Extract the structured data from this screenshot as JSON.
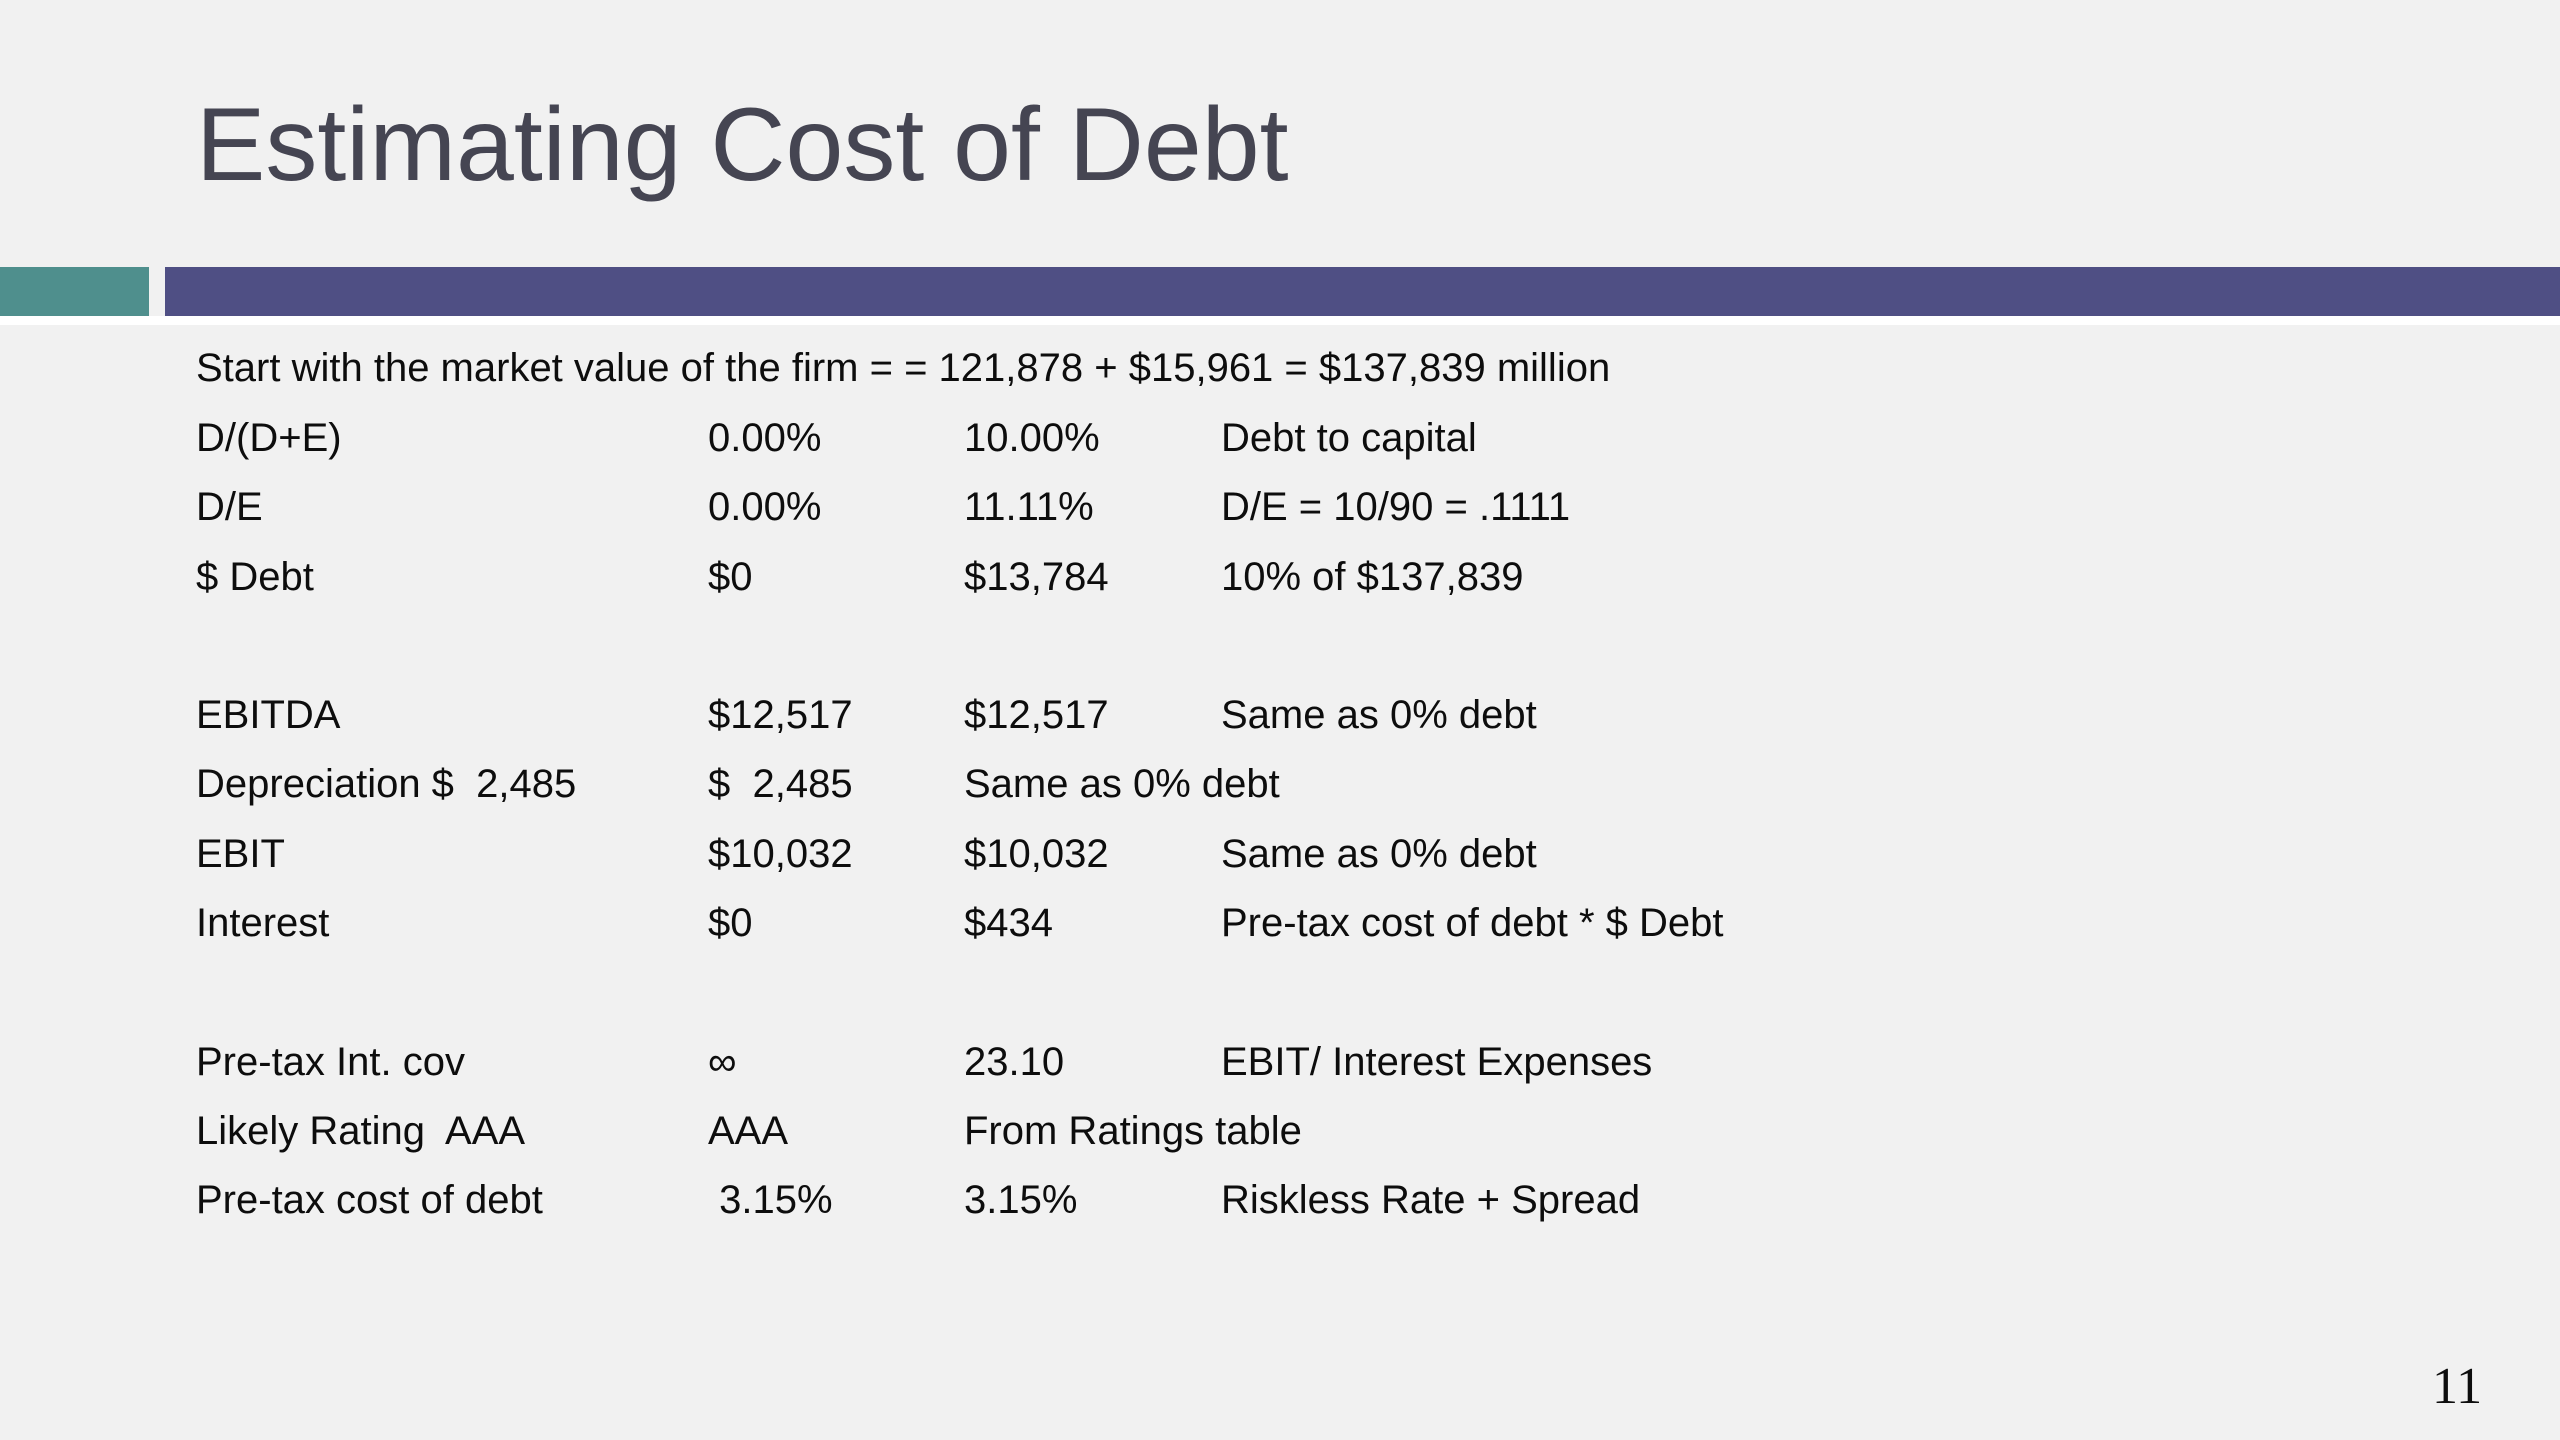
{
  "title": "Estimating Cost of Debt",
  "intro": "Start with the market value of the firm = = 121,878 + $15,961 = $137,839 million",
  "rows": [
    {
      "c1": "D/(D+E)",
      "c2": "0.00%",
      "c3": "10.00%",
      "c4": "Debt to capital"
    },
    {
      "c1": "D/E",
      "c2": "0.00%",
      "c3": "11.11%",
      "c4": "D/E = 10/90 = .1111"
    },
    {
      "c1": "$ Debt",
      "c2": "$0",
      "c3": "$13,784",
      "c4": "10% of $137,839"
    },
    {
      "c1": "EBITDA",
      "c2": "$12,517",
      "c3": "$12,517",
      "c4": "Same as 0% debt"
    },
    {
      "c1": "Depreciation $  2,485",
      "c2": "$  2,485",
      "c3": "Same as 0% debt",
      "c4": ""
    },
    {
      "c1": "EBIT",
      "c2": "$10,032",
      "c3": "$10,032",
      "c4": "Same as 0% debt"
    },
    {
      "c1": "Interest",
      "c2": "$0",
      "c3": "$434",
      "c4": "Pre-tax cost of debt * $ Debt"
    },
    {
      "c1": "Pre-tax Int. cov",
      "c2": "∞",
      "c3": "23.10",
      "c4": "EBIT/ Interest Expenses"
    },
    {
      "c1": "Likely Rating  AAA",
      "c2": "AAA",
      "c3": "From Ratings table",
      "c4": ""
    },
    {
      "c1": "Pre-tax cost of debt",
      "c2": " 3.15%",
      "c3": "3.15%",
      "c4": "Riskless Rate + Spread"
    }
  ],
  "page_number": "11",
  "colors": {
    "background": "#f1f1f1",
    "title": "#454552",
    "accent_teal": "#4f8f8d",
    "accent_purple": "#4f4f84",
    "text": "#0d0d0d"
  }
}
